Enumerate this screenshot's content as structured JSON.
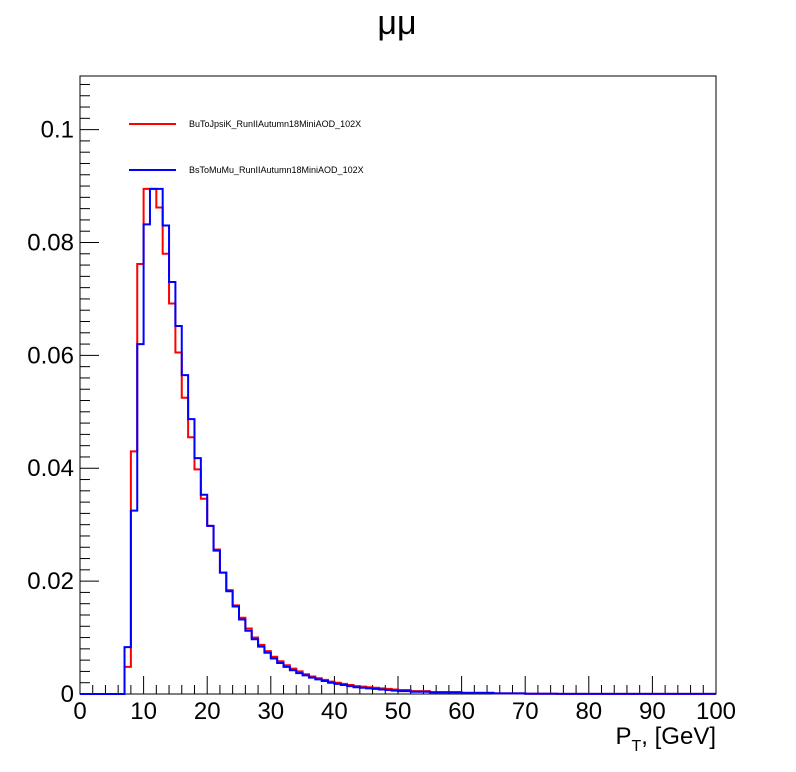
{
  "chart_data": {
    "type": "histogram",
    "title": "μμ",
    "xlabel": {
      "main": "P",
      "sub": "T",
      "rest": ", [GeV]"
    },
    "ylabel": "",
    "xlim": [
      0,
      100
    ],
    "ylim": [
      0,
      0.1095
    ],
    "x_ticks": [
      0,
      10,
      20,
      30,
      40,
      50,
      60,
      70,
      80,
      90,
      100
    ],
    "y_ticks": [
      0,
      0.02,
      0.04,
      0.06,
      0.08,
      0.1
    ],
    "y_tick_labels": [
      "0",
      "0.02",
      "0.04",
      "0.06",
      "0.08",
      "0.1"
    ],
    "bin_edges": [
      0,
      7,
      8,
      9,
      10,
      11,
      12,
      13,
      14,
      15,
      16,
      17,
      18,
      19,
      20,
      21,
      22,
      23,
      24,
      25,
      26,
      27,
      28,
      29,
      30,
      31,
      32,
      33,
      34,
      35,
      36,
      37,
      38,
      39,
      40,
      41,
      42,
      43,
      44,
      45,
      46,
      47,
      48,
      49,
      50,
      52,
      55,
      60,
      65,
      70,
      75,
      100
    ],
    "grid": false,
    "legend_position": "top-left",
    "series": [
      {
        "name": "BuToJpsiK_RunIIAutumn18MiniAOD_102X",
        "color": "#ff0000",
        "values": [
          0,
          0.0048,
          0.043,
          0.0762,
          0.0895,
          0.0895,
          0.0862,
          0.078,
          0.0692,
          0.0605,
          0.0525,
          0.0455,
          0.0398,
          0.0346,
          0.0298,
          0.0256,
          0.0215,
          0.0184,
          0.0157,
          0.0135,
          0.0116,
          0.01,
          0.0087,
          0.0076,
          0.0066,
          0.0058,
          0.0051,
          0.0045,
          0.004,
          0.0035,
          0.0031,
          0.0028,
          0.0025,
          0.0022,
          0.002,
          0.0018,
          0.0016,
          0.0014,
          0.0013,
          0.0012,
          0.0011,
          0.001,
          0.0009,
          0.0008,
          0.0007,
          0.0005,
          0.0003,
          0.0002,
          0.0001,
          5e-05,
          2e-05
        ]
      },
      {
        "name": "BsToMuMu_RunIIAutumn18MiniAOD_102X",
        "color": "#0000ff",
        "values": [
          0,
          0.0083,
          0.0325,
          0.062,
          0.0832,
          0.0895,
          0.0895,
          0.083,
          0.073,
          0.0652,
          0.0565,
          0.0487,
          0.0418,
          0.0353,
          0.0298,
          0.0254,
          0.0215,
          0.0182,
          0.0155,
          0.0132,
          0.0112,
          0.0097,
          0.0084,
          0.0073,
          0.0063,
          0.0055,
          0.0048,
          0.0042,
          0.0037,
          0.0033,
          0.0029,
          0.0026,
          0.0023,
          0.002,
          0.0018,
          0.0016,
          0.0014,
          0.0012,
          0.0011,
          0.001,
          0.0009,
          0.0008,
          0.0007,
          0.0006,
          0.0005,
          0.0004,
          0.0003,
          0.0002,
          0.0001,
          5e-05,
          2e-05
        ]
      }
    ]
  }
}
